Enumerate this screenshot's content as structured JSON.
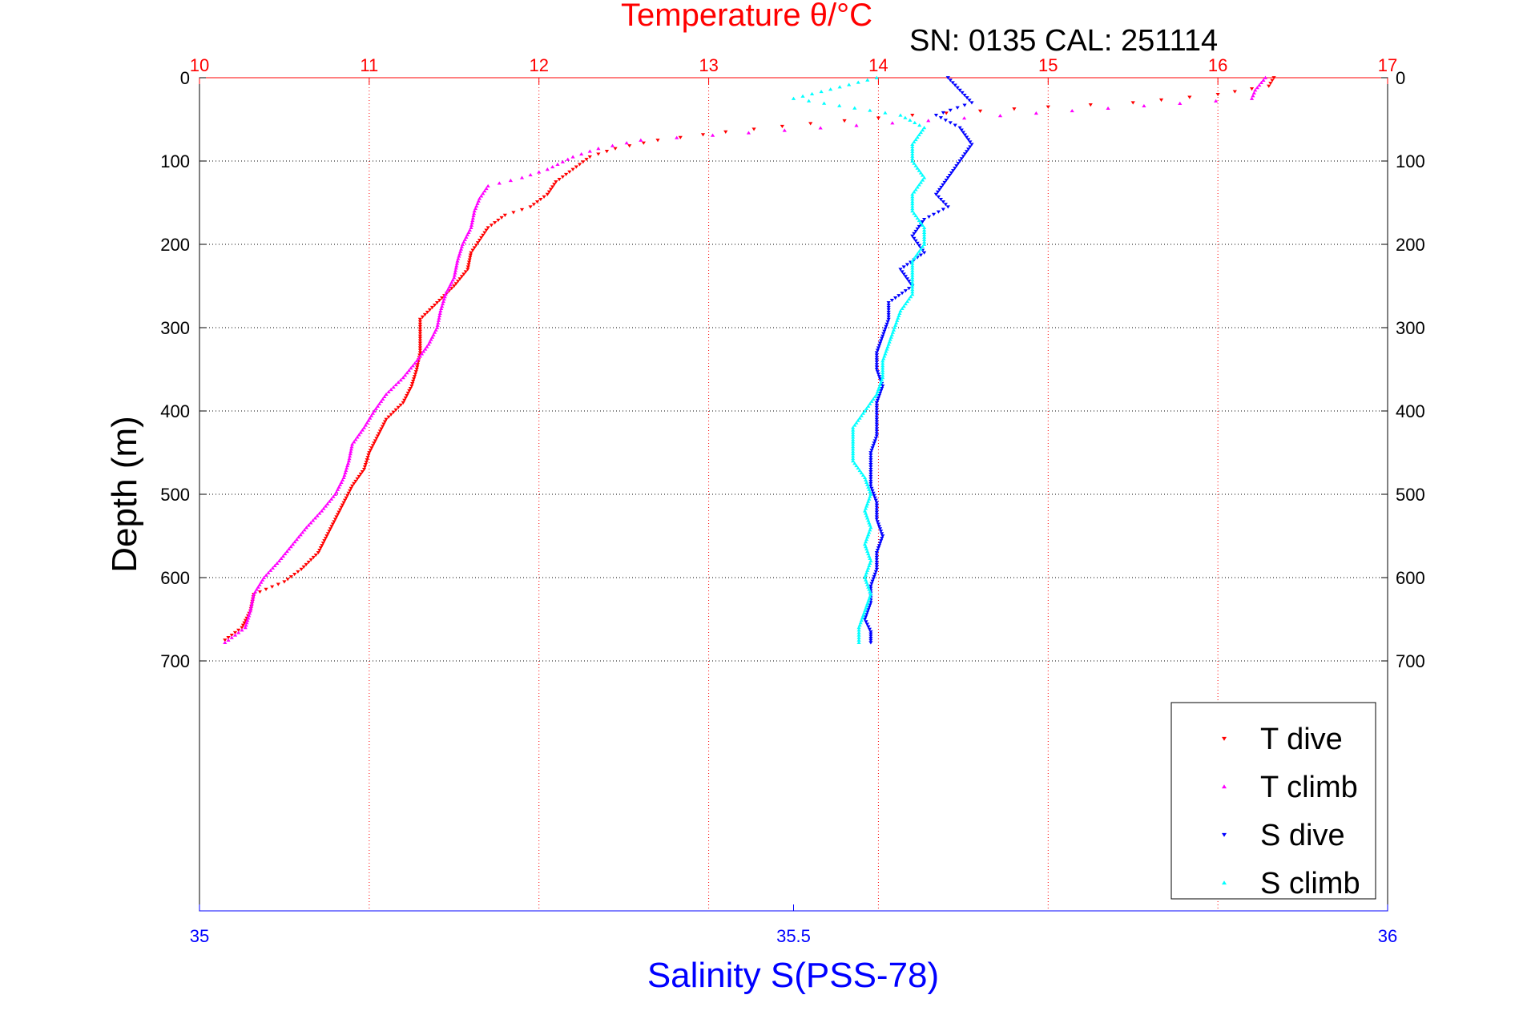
{
  "chart_data": {
    "type": "scatter",
    "title": "Temperature θ/°C",
    "annotation": "SN: 0135  CAL: 251114",
    "xlabel": "Salinity S(PSS-78)",
    "ylabel": "Depth (m)",
    "top_axis": {
      "label": "Temperature θ/°C",
      "range": [
        10,
        17
      ],
      "ticks": [
        "10",
        "11",
        "12",
        "13",
        "14",
        "15",
        "16",
        "17"
      ]
    },
    "bottom_axis": {
      "label": "Salinity S(PSS-78)",
      "range": [
        35,
        36
      ],
      "ticks": [
        "35",
        "35.5",
        "36"
      ]
    },
    "y_axis": {
      "label": "Depth (m)",
      "range": [
        0,
        1000
      ],
      "reversed": true,
      "ticks": [
        "0",
        "100",
        "200",
        "300",
        "400",
        "500",
        "600",
        "700"
      ]
    },
    "grid": true,
    "legend_placement": "bottom-right",
    "series": [
      {
        "name": "T dive",
        "axis": "temperature",
        "color": "#ff0000",
        "marker": "down-triangle",
        "points": [
          [
            16.33,
            0
          ],
          [
            16.3,
            10
          ],
          [
            16.0,
            20
          ],
          [
            15.5,
            30
          ],
          [
            15.0,
            35
          ],
          [
            14.6,
            40
          ],
          [
            14.2,
            45
          ],
          [
            13.6,
            55
          ],
          [
            13.1,
            65
          ],
          [
            12.7,
            75
          ],
          [
            12.45,
            85
          ],
          [
            12.3,
            95
          ],
          [
            12.2,
            110
          ],
          [
            12.1,
            125
          ],
          [
            12.05,
            140
          ],
          [
            11.95,
            155
          ],
          [
            11.8,
            165
          ],
          [
            11.7,
            180
          ],
          [
            11.65,
            195
          ],
          [
            11.6,
            210
          ],
          [
            11.58,
            230
          ],
          [
            11.5,
            250
          ],
          [
            11.4,
            270
          ],
          [
            11.3,
            290
          ],
          [
            11.3,
            310
          ],
          [
            11.3,
            330
          ],
          [
            11.28,
            350
          ],
          [
            11.25,
            370
          ],
          [
            11.2,
            390
          ],
          [
            11.1,
            410
          ],
          [
            11.05,
            430
          ],
          [
            11.0,
            450
          ],
          [
            10.97,
            470
          ],
          [
            10.9,
            490
          ],
          [
            10.85,
            510
          ],
          [
            10.8,
            530
          ],
          [
            10.75,
            550
          ],
          [
            10.7,
            570
          ],
          [
            10.6,
            590
          ],
          [
            10.5,
            605
          ],
          [
            10.32,
            620
          ],
          [
            10.3,
            640
          ],
          [
            10.25,
            660
          ],
          [
            10.15,
            675
          ]
        ]
      },
      {
        "name": "T climb",
        "axis": "temperature",
        "color": "#ff00ff",
        "marker": "up-triangle",
        "points": [
          [
            16.28,
            0
          ],
          [
            16.22,
            15
          ],
          [
            16.2,
            25
          ],
          [
            12.6,
            75
          ],
          [
            12.35,
            85
          ],
          [
            12.2,
            95
          ],
          [
            12.05,
            110
          ],
          [
            11.9,
            120
          ],
          [
            11.7,
            130
          ],
          [
            11.65,
            145
          ],
          [
            11.62,
            160
          ],
          [
            11.6,
            180
          ],
          [
            11.55,
            200
          ],
          [
            11.52,
            220
          ],
          [
            11.5,
            240
          ],
          [
            11.45,
            260
          ],
          [
            11.42,
            280
          ],
          [
            11.4,
            300
          ],
          [
            11.35,
            320
          ],
          [
            11.28,
            340
          ],
          [
            11.2,
            360
          ],
          [
            11.1,
            380
          ],
          [
            11.03,
            400
          ],
          [
            10.97,
            420
          ],
          [
            10.9,
            440
          ],
          [
            10.88,
            460
          ],
          [
            10.85,
            480
          ],
          [
            10.8,
            500
          ],
          [
            10.72,
            520
          ],
          [
            10.63,
            540
          ],
          [
            10.55,
            560
          ],
          [
            10.47,
            580
          ],
          [
            10.38,
            600
          ],
          [
            10.32,
            620
          ],
          [
            10.3,
            640
          ],
          [
            10.27,
            660
          ],
          [
            10.15,
            678
          ]
        ]
      },
      {
        "name": "S dive",
        "axis": "salinity",
        "color": "#0000ff",
        "marker": "down-triangle",
        "points": [
          [
            35.63,
            0
          ],
          [
            35.64,
            15
          ],
          [
            35.65,
            30
          ],
          [
            35.62,
            45
          ],
          [
            35.64,
            60
          ],
          [
            35.65,
            80
          ],
          [
            35.64,
            100
          ],
          [
            35.63,
            120
          ],
          [
            35.62,
            140
          ],
          [
            35.63,
            155
          ],
          [
            35.61,
            170
          ],
          [
            35.6,
            190
          ],
          [
            35.61,
            210
          ],
          [
            35.59,
            230
          ],
          [
            35.6,
            250
          ],
          [
            35.58,
            270
          ],
          [
            35.58,
            290
          ],
          [
            35.575,
            310
          ],
          [
            35.57,
            330
          ],
          [
            35.57,
            350
          ],
          [
            35.575,
            370
          ],
          [
            35.57,
            390
          ],
          [
            35.57,
            410
          ],
          [
            35.57,
            430
          ],
          [
            35.565,
            450
          ],
          [
            35.565,
            470
          ],
          [
            35.565,
            490
          ],
          [
            35.57,
            510
          ],
          [
            35.57,
            530
          ],
          [
            35.575,
            550
          ],
          [
            35.57,
            570
          ],
          [
            35.57,
            590
          ],
          [
            35.565,
            610
          ],
          [
            35.565,
            630
          ],
          [
            35.56,
            650
          ],
          [
            35.565,
            665
          ],
          [
            35.565,
            678
          ]
        ]
      },
      {
        "name": "S climb",
        "axis": "salinity",
        "color": "#00ffff",
        "marker": "up-triangle",
        "points": [
          [
            35.57,
            0
          ],
          [
            35.5,
            25
          ],
          [
            35.59,
            45
          ],
          [
            35.61,
            60
          ],
          [
            35.6,
            80
          ],
          [
            35.6,
            100
          ],
          [
            35.61,
            120
          ],
          [
            35.6,
            140
          ],
          [
            35.6,
            160
          ],
          [
            35.61,
            180
          ],
          [
            35.61,
            200
          ],
          [
            35.6,
            220
          ],
          [
            35.6,
            240
          ],
          [
            35.6,
            260
          ],
          [
            35.59,
            280
          ],
          [
            35.585,
            300
          ],
          [
            35.58,
            320
          ],
          [
            35.575,
            340
          ],
          [
            35.575,
            360
          ],
          [
            35.57,
            380
          ],
          [
            35.56,
            400
          ],
          [
            35.55,
            420
          ],
          [
            35.55,
            440
          ],
          [
            35.55,
            460
          ],
          [
            35.56,
            480
          ],
          [
            35.565,
            500
          ],
          [
            35.56,
            520
          ],
          [
            35.565,
            540
          ],
          [
            35.56,
            560
          ],
          [
            35.565,
            580
          ],
          [
            35.56,
            600
          ],
          [
            35.565,
            620
          ],
          [
            35.56,
            640
          ],
          [
            35.555,
            660
          ],
          [
            35.555,
            678
          ]
        ]
      }
    ]
  },
  "legend": {
    "items": [
      {
        "label": "T dive",
        "color": "#ff0000",
        "marker": "down-triangle"
      },
      {
        "label": "T climb",
        "color": "#ff00ff",
        "marker": "up-triangle"
      },
      {
        "label": "S dive",
        "color": "#0000ff",
        "marker": "down-triangle"
      },
      {
        "label": "S climb",
        "color": "#00ffff",
        "marker": "up-triangle"
      }
    ]
  }
}
